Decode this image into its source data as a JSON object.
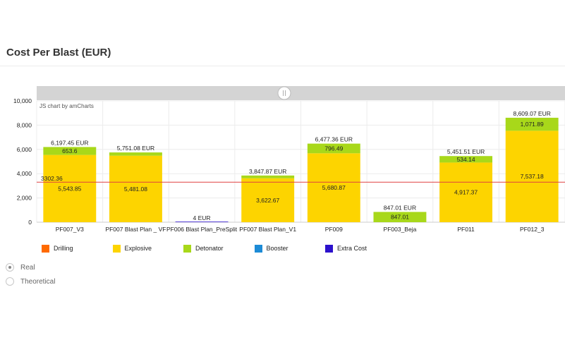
{
  "page": {
    "title": "Cost Per Blast (EUR)"
  },
  "chart_data": {
    "type": "bar",
    "stacked": true,
    "credit": "JS chart by amCharts",
    "ylim": [
      0,
      10000
    ],
    "yticks": [
      "0",
      "2,000",
      "4,000",
      "6,000",
      "8,000",
      "10,000"
    ],
    "ytick_values": [
      0,
      2000,
      4000,
      6000,
      8000,
      10000
    ],
    "categories": [
      "PF007_V3",
      "PF007 Blast Plan _ VF",
      "PF006 Blast Plan_PreSplit",
      "PF007 Blast Plan_V1",
      "PF009",
      "PF003_Beja",
      "PF011",
      "PF012_3"
    ],
    "series": [
      {
        "name": "Drilling",
        "color": "#ff6a00",
        "values": [
          0,
          0,
          0,
          0,
          0,
          0,
          0,
          0
        ],
        "labels": [
          "",
          "",
          "",
          "",
          "",
          "",
          "",
          ""
        ]
      },
      {
        "name": "Explosive",
        "color": "#fdd400",
        "values": [
          5543.85,
          5481.08,
          0,
          3622.67,
          5680.87,
          0,
          4917.37,
          7537.18
        ],
        "labels": [
          "5,543.85",
          "5,481.08",
          "",
          "3,622.67",
          "5,680.87",
          "",
          "4,917.37",
          "7,537.18"
        ]
      },
      {
        "name": "Detonator",
        "color": "#a8d81a",
        "values": [
          653.6,
          270,
          0,
          225.2,
          796.49,
          847.01,
          534.14,
          1071.89
        ],
        "labels": [
          "653.6",
          "",
          "",
          "",
          "796.49",
          "847.01",
          "534.14",
          "1,071.89"
        ]
      },
      {
        "name": "Booster",
        "color": "#1d8bd6",
        "values": [
          0,
          0,
          0,
          0,
          0,
          0,
          0,
          0
        ],
        "labels": [
          "",
          "",
          "",
          "",
          "",
          "",
          "",
          ""
        ]
      },
      {
        "name": "Extra Cost",
        "color": "#2c11cc",
        "values": [
          0,
          0,
          4,
          0,
          0,
          0,
          0,
          0
        ],
        "labels": [
          "",
          "",
          "",
          "",
          "",
          "",
          "",
          ""
        ]
      }
    ],
    "totals": [
      6197.45,
      5751.08,
      4,
      3847.87,
      6477.36,
      847.01,
      5451.51,
      8609.07
    ],
    "total_labels": [
      "6,197.45 EUR",
      "5,751.08 EUR",
      "4 EUR",
      "3,847.87 EUR",
      "6,477.36 EUR",
      "847.01 EUR",
      "5,451.51 EUR",
      "8,609.07 EUR"
    ],
    "reference_line": {
      "value": 3302.36,
      "label": "3302.36",
      "color": "#e04040"
    },
    "grid": true,
    "legend_position": "bottom",
    "scrollbar": true
  },
  "options": {
    "selected": "Real",
    "items": [
      {
        "label": "Real",
        "checked": true
      },
      {
        "label": "Theoretical",
        "checked": false
      }
    ]
  }
}
